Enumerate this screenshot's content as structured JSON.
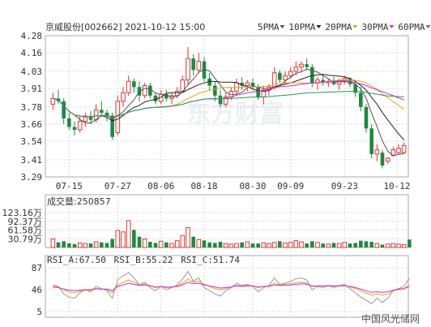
{
  "header": {
    "title": "京威股份[002662] 2021-10-12 15:00",
    "legend": [
      {
        "label": "5PMA",
        "color": "#555555"
      },
      {
        "label": "10PMA",
        "color": "#222222"
      },
      {
        "label": "20PMA",
        "color": "#e8a317"
      },
      {
        "label": "30PMA",
        "color": "#d62bd6"
      },
      {
        "label": "60PMA",
        "color": "#1f9e55"
      }
    ]
  },
  "watermark": "东方财富",
  "footer_brand": "中国风光储网",
  "volume_title": "成交量:250857",
  "rsi_legend": [
    {
      "label": "RSI_A:67.50",
      "color": "#999999"
    },
    {
      "label": "RSI_B:55.22",
      "color": "#e8a317"
    },
    {
      "label": "RSI_C:51.74",
      "color": "#d62bd6"
    }
  ],
  "colors": {
    "up": "#e33333",
    "down": "#1d8a3f"
  },
  "chart_data": [
    {
      "type": "candlestick",
      "title": "",
      "ylim": [
        3.29,
        4.28
      ],
      "y_ticks": [
        "4.28",
        "4.16",
        "4.03",
        "3.91",
        "3.78",
        "3.66",
        "3.54",
        "3.41",
        "3.29"
      ],
      "x_tick_labels": [
        "07-15",
        "07-27",
        "08-06",
        "08-18",
        "08-30",
        "09-09",
        "09-23",
        "10-12"
      ],
      "candles": [
        {
          "o": 3.8,
          "h": 3.88,
          "l": 3.76,
          "c": 3.84
        },
        {
          "o": 3.84,
          "h": 3.9,
          "l": 3.8,
          "c": 3.82
        },
        {
          "o": 3.82,
          "h": 3.84,
          "l": 3.66,
          "c": 3.7
        },
        {
          "o": 3.7,
          "h": 3.74,
          "l": 3.62,
          "c": 3.64
        },
        {
          "o": 3.64,
          "h": 3.68,
          "l": 3.58,
          "c": 3.62
        },
        {
          "o": 3.62,
          "h": 3.72,
          "l": 3.6,
          "c": 3.68
        },
        {
          "o": 3.68,
          "h": 3.74,
          "l": 3.64,
          "c": 3.71
        },
        {
          "o": 3.71,
          "h": 3.75,
          "l": 3.66,
          "c": 3.69
        },
        {
          "o": 3.69,
          "h": 3.8,
          "l": 3.67,
          "c": 3.76
        },
        {
          "o": 3.76,
          "h": 3.82,
          "l": 3.72,
          "c": 3.74
        },
        {
          "o": 3.74,
          "h": 3.76,
          "l": 3.68,
          "c": 3.72
        },
        {
          "o": 3.72,
          "h": 3.74,
          "l": 3.55,
          "c": 3.57
        },
        {
          "o": 3.6,
          "h": 3.86,
          "l": 3.58,
          "c": 3.82
        },
        {
          "o": 3.82,
          "h": 3.92,
          "l": 3.78,
          "c": 3.88
        },
        {
          "o": 3.88,
          "h": 4.0,
          "l": 3.86,
          "c": 3.96
        },
        {
          "o": 3.96,
          "h": 3.98,
          "l": 3.88,
          "c": 3.92
        },
        {
          "o": 3.92,
          "h": 3.96,
          "l": 3.82,
          "c": 3.86
        },
        {
          "o": 3.86,
          "h": 3.95,
          "l": 3.84,
          "c": 3.93
        },
        {
          "o": 3.93,
          "h": 3.95,
          "l": 3.84,
          "c": 3.86
        },
        {
          "o": 3.86,
          "h": 3.88,
          "l": 3.8,
          "c": 3.82
        },
        {
          "o": 3.82,
          "h": 3.9,
          "l": 3.8,
          "c": 3.87
        },
        {
          "o": 3.87,
          "h": 3.9,
          "l": 3.82,
          "c": 3.84
        },
        {
          "o": 3.84,
          "h": 3.88,
          "l": 3.8,
          "c": 3.86
        },
        {
          "o": 3.86,
          "h": 3.92,
          "l": 3.84,
          "c": 3.89
        },
        {
          "o": 3.89,
          "h": 4.0,
          "l": 3.88,
          "c": 3.97
        },
        {
          "o": 3.97,
          "h": 4.2,
          "l": 3.94,
          "c": 4.12
        },
        {
          "o": 4.12,
          "h": 4.15,
          "l": 4.0,
          "c": 4.04
        },
        {
          "o": 4.04,
          "h": 4.16,
          "l": 4.02,
          "c": 4.1
        },
        {
          "o": 4.1,
          "h": 4.13,
          "l": 3.96,
          "c": 3.98
        },
        {
          "o": 3.98,
          "h": 4.02,
          "l": 3.9,
          "c": 3.93
        },
        {
          "o": 3.93,
          "h": 3.96,
          "l": 3.82,
          "c": 3.86
        },
        {
          "o": 3.86,
          "h": 3.9,
          "l": 3.78,
          "c": 3.8
        },
        {
          "o": 3.8,
          "h": 3.88,
          "l": 3.78,
          "c": 3.85
        },
        {
          "o": 3.85,
          "h": 3.92,
          "l": 3.83,
          "c": 3.89
        },
        {
          "o": 3.89,
          "h": 3.98,
          "l": 3.87,
          "c": 3.95
        },
        {
          "o": 3.95,
          "h": 3.99,
          "l": 3.9,
          "c": 3.93
        },
        {
          "o": 3.93,
          "h": 3.97,
          "l": 3.89,
          "c": 3.95
        },
        {
          "o": 3.95,
          "h": 3.98,
          "l": 3.9,
          "c": 3.92
        },
        {
          "o": 3.92,
          "h": 3.94,
          "l": 3.83,
          "c": 3.85
        },
        {
          "o": 3.85,
          "h": 3.93,
          "l": 3.8,
          "c": 3.9
        },
        {
          "o": 3.9,
          "h": 3.94,
          "l": 3.86,
          "c": 3.92
        },
        {
          "o": 3.92,
          "h": 4.06,
          "l": 3.9,
          "c": 4.02
        },
        {
          "o": 4.02,
          "h": 4.04,
          "l": 3.95,
          "c": 3.97
        },
        {
          "o": 3.97,
          "h": 4.03,
          "l": 3.95,
          "c": 4.0
        },
        {
          "o": 4.0,
          "h": 4.06,
          "l": 3.98,
          "c": 4.03
        },
        {
          "o": 4.03,
          "h": 4.1,
          "l": 4.0,
          "c": 4.06
        },
        {
          "o": 4.06,
          "h": 4.1,
          "l": 4.02,
          "c": 4.08
        },
        {
          "o": 4.08,
          "h": 4.12,
          "l": 4.04,
          "c": 4.06
        },
        {
          "o": 4.06,
          "h": 4.08,
          "l": 3.92,
          "c": 3.95
        },
        {
          "o": 3.95,
          "h": 3.99,
          "l": 3.9,
          "c": 3.97
        },
        {
          "o": 3.97,
          "h": 4.0,
          "l": 3.93,
          "c": 3.95
        },
        {
          "o": 3.95,
          "h": 3.98,
          "l": 3.92,
          "c": 3.96
        },
        {
          "o": 3.96,
          "h": 3.99,
          "l": 3.93,
          "c": 3.94
        },
        {
          "o": 3.94,
          "h": 3.98,
          "l": 3.9,
          "c": 3.96
        },
        {
          "o": 3.96,
          "h": 4.0,
          "l": 3.94,
          "c": 3.98
        },
        {
          "o": 3.98,
          "h": 3.99,
          "l": 3.92,
          "c": 3.94
        },
        {
          "o": 3.94,
          "h": 3.96,
          "l": 3.85,
          "c": 3.88
        },
        {
          "o": 3.88,
          "h": 3.92,
          "l": 3.75,
          "c": 3.78
        },
        {
          "o": 3.78,
          "h": 3.8,
          "l": 3.6,
          "c": 3.63
        },
        {
          "o": 3.63,
          "h": 3.66,
          "l": 3.42,
          "c": 3.45
        },
        {
          "o": 3.45,
          "h": 3.52,
          "l": 3.4,
          "c": 3.48
        },
        {
          "o": 3.46,
          "h": 3.48,
          "l": 3.35,
          "c": 3.37
        },
        {
          "o": 3.4,
          "h": 3.43,
          "l": 3.38,
          "c": 3.42
        },
        {
          "o": 3.44,
          "h": 3.5,
          "l": 3.43,
          "c": 3.48
        },
        {
          "o": 3.46,
          "h": 3.52,
          "l": 3.45,
          "c": 3.49
        },
        {
          "o": 3.46,
          "h": 3.53,
          "l": 3.45,
          "c": 3.51
        }
      ]
    },
    {
      "type": "bar",
      "title": "成交量:250857",
      "unit": "万",
      "y_ticks": [
        "123.16万",
        "92.37万",
        "61.58万",
        "30.79万"
      ],
      "ylim": [
        0,
        123.16
      ],
      "values": [
        30,
        18,
        22,
        15,
        12,
        16,
        14,
        14,
        20,
        18,
        16,
        30,
        60,
        55,
        95,
        62,
        38,
        30,
        20,
        16,
        22,
        18,
        14,
        24,
        42,
        70,
        38,
        28,
        25,
        18,
        16,
        20,
        14,
        12,
        14,
        18,
        20,
        14,
        14,
        16,
        14,
        18,
        22,
        16,
        18,
        24,
        20,
        14,
        22,
        18,
        14,
        12,
        16,
        14,
        18,
        14,
        16,
        24,
        22,
        20,
        14,
        10,
        12,
        14,
        12,
        10,
        28
      ]
    },
    {
      "type": "line",
      "title": "RSI",
      "y_ticks": [
        "87",
        "46",
        "5"
      ],
      "ylim": [
        5,
        87
      ],
      "series": [
        {
          "name": "RSI_A",
          "values": [
            55,
            52,
            38,
            32,
            30,
            40,
            46,
            42,
            52,
            48,
            44,
            30,
            65,
            72,
            78,
            68,
            55,
            60,
            50,
            44,
            52,
            46,
            50,
            55,
            66,
            80,
            62,
            68,
            50,
            44,
            38,
            34,
            44,
            50,
            58,
            54,
            56,
            52,
            42,
            50,
            54,
            68,
            56,
            58,
            62,
            66,
            68,
            64,
            46,
            52,
            50,
            54,
            50,
            54,
            56,
            48,
            40,
            32,
            26,
            20,
            30,
            22,
            30,
            44,
            48,
            52,
            67.5
          ]
        },
        {
          "name": "RSI_B",
          "values": [
            52,
            51,
            46,
            42,
            40,
            43,
            45,
            44,
            48,
            47,
            46,
            40,
            55,
            60,
            64,
            60,
            55,
            57,
            53,
            50,
            52,
            50,
            51,
            53,
            58,
            66,
            60,
            62,
            56,
            52,
            48,
            46,
            48,
            51,
            54,
            53,
            54,
            53,
            50,
            52,
            53,
            58,
            55,
            56,
            57,
            59,
            60,
            58,
            52,
            53,
            53,
            54,
            53,
            54,
            54,
            51,
            48,
            44,
            40,
            36,
            38,
            36,
            38,
            44,
            46,
            48,
            55.22
          ]
        },
        {
          "name": "RSI_C",
          "values": [
            51,
            50,
            47,
            45,
            44,
            45,
            46,
            46,
            48,
            47,
            47,
            44,
            52,
            55,
            58,
            56,
            54,
            55,
            53,
            51,
            52,
            51,
            51,
            52,
            55,
            60,
            57,
            58,
            55,
            53,
            51,
            49,
            50,
            51,
            53,
            52,
            53,
            53,
            51,
            52,
            52,
            55,
            54,
            54,
            55,
            56,
            57,
            56,
            53,
            53,
            53,
            53,
            53,
            53,
            53,
            52,
            50,
            47,
            44,
            41,
            42,
            41,
            42,
            45,
            47,
            48,
            51.74
          ]
        }
      ]
    }
  ]
}
